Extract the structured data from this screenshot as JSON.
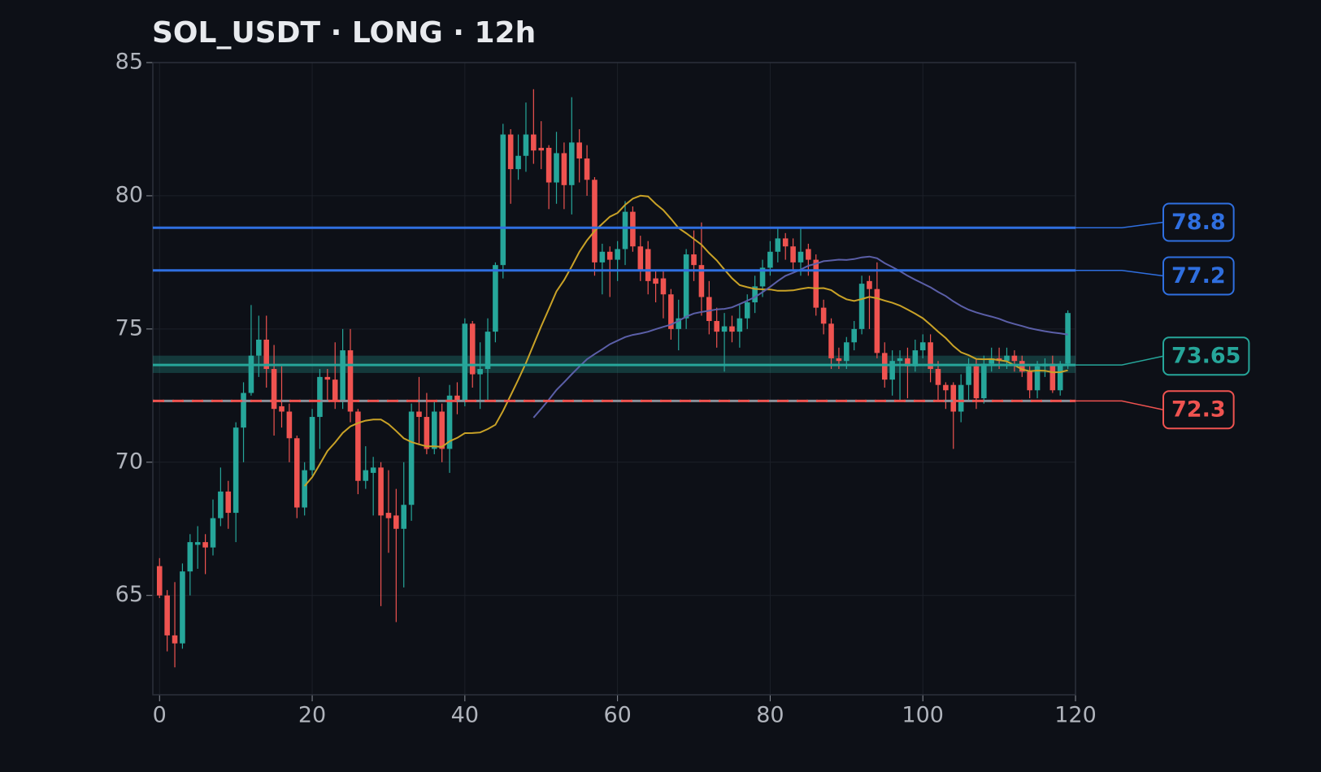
{
  "chart_data": {
    "type": "candlestick",
    "title": "SOL_USDT · LONG · 12h",
    "up_color": "#26a69a",
    "down_color": "#ef5350",
    "grid": true,
    "xlim": [
      -0.88,
      120
    ],
    "xticks": [
      0,
      20,
      40,
      60,
      80,
      100,
      120
    ],
    "ylim": [
      61.27,
      85
    ],
    "yticks": [
      65,
      70,
      75,
      80,
      85
    ],
    "x": [
      0,
      1,
      2,
      3,
      4,
      5,
      6,
      7,
      8,
      9,
      10,
      11,
      12,
      13,
      14,
      15,
      16,
      17,
      18,
      19,
      20,
      21,
      22,
      23,
      24,
      25,
      26,
      27,
      28,
      29,
      30,
      31,
      32,
      33,
      34,
      35,
      36,
      37,
      38,
      39,
      40,
      41,
      42,
      43,
      44,
      45,
      46,
      47,
      48,
      49,
      50,
      51,
      52,
      53,
      54,
      55,
      56,
      57,
      58,
      59,
      60,
      61,
      62,
      63,
      64,
      65,
      66,
      67,
      68,
      69,
      70,
      71,
      72,
      73,
      74,
      75,
      76,
      77,
      78,
      79,
      80,
      81,
      82,
      83,
      84,
      85,
      86,
      87,
      88,
      89,
      90,
      91,
      92,
      93,
      94,
      95,
      96,
      97,
      98,
      99,
      100,
      101,
      102,
      103,
      104,
      105,
      106,
      107,
      108,
      109,
      110,
      111,
      112,
      113,
      114,
      115,
      116,
      117,
      118,
      119
    ],
    "ohlc": [
      [
        66.1,
        66.4,
        64.9,
        65.0
      ],
      [
        65.0,
        65.2,
        62.9,
        63.5
      ],
      [
        63.5,
        65.5,
        62.3,
        63.2
      ],
      [
        63.2,
        66.2,
        63.0,
        65.9
      ],
      [
        65.9,
        67.3,
        65.0,
        67.0
      ],
      [
        66.9,
        67.6,
        66.0,
        67.0
      ],
      [
        67.0,
        67.3,
        65.8,
        66.8
      ],
      [
        66.8,
        68.6,
        66.5,
        67.9
      ],
      [
        67.9,
        69.8,
        67.6,
        68.9
      ],
      [
        68.9,
        69.3,
        67.5,
        68.1
      ],
      [
        68.1,
        71.5,
        67.0,
        71.3
      ],
      [
        71.3,
        73.0,
        70.0,
        72.6
      ],
      [
        72.6,
        75.9,
        72.5,
        74.0
      ],
      [
        74.0,
        75.5,
        73.2,
        74.6
      ],
      [
        74.6,
        75.5,
        72.8,
        73.5
      ],
      [
        73.5,
        74.4,
        71.0,
        72.0
      ],
      [
        72.1,
        73.6,
        71.3,
        71.9
      ],
      [
        71.9,
        72.2,
        70.0,
        70.9
      ],
      [
        70.9,
        71.0,
        67.9,
        68.3
      ],
      [
        68.3,
        70.0,
        68.0,
        69.7
      ],
      [
        69.7,
        72.0,
        69.5,
        71.7
      ],
      [
        71.7,
        73.5,
        70.5,
        73.2
      ],
      [
        73.2,
        73.5,
        72.3,
        73.1
      ],
      [
        73.1,
        74.5,
        72.0,
        72.3
      ],
      [
        72.3,
        75.0,
        72.0,
        74.2
      ],
      [
        74.2,
        75.0,
        71.5,
        71.9
      ],
      [
        71.9,
        72.0,
        68.8,
        69.3
      ],
      [
        69.3,
        70.6,
        69.0,
        69.7
      ],
      [
        69.6,
        70.2,
        68.0,
        69.8
      ],
      [
        69.8,
        70.0,
        64.6,
        68.0
      ],
      [
        68.1,
        69.7,
        66.6,
        67.9
      ],
      [
        68.0,
        69.0,
        64.0,
        67.5
      ],
      [
        67.5,
        70.0,
        65.3,
        68.4
      ],
      [
        68.4,
        72.2,
        67.8,
        71.9
      ],
      [
        71.9,
        73.2,
        70.7,
        71.7
      ],
      [
        71.7,
        72.6,
        70.3,
        70.5
      ],
      [
        70.5,
        72.3,
        70.3,
        71.9
      ],
      [
        71.9,
        72.2,
        70.0,
        70.5
      ],
      [
        70.5,
        72.9,
        69.6,
        72.5
      ],
      [
        72.5,
        73.0,
        71.8,
        72.3
      ],
      [
        72.3,
        75.4,
        72.1,
        75.2
      ],
      [
        75.2,
        75.3,
        72.8,
        73.3
      ],
      [
        73.3,
        74.5,
        72.0,
        73.5
      ],
      [
        73.5,
        75.4,
        72.3,
        74.9
      ],
      [
        74.9,
        77.5,
        74.5,
        77.4
      ],
      [
        77.4,
        82.7,
        76.9,
        82.3
      ],
      [
        82.3,
        82.5,
        79.7,
        81.0
      ],
      [
        81.0,
        82.3,
        80.6,
        81.5
      ],
      [
        81.5,
        83.5,
        80.9,
        82.3
      ],
      [
        82.3,
        84.0,
        81.2,
        81.7
      ],
      [
        81.8,
        82.8,
        81.0,
        81.7
      ],
      [
        81.8,
        81.9,
        79.5,
        80.5
      ],
      [
        80.5,
        82.4,
        79.7,
        81.6
      ],
      [
        81.6,
        82.0,
        79.5,
        80.4
      ],
      [
        80.4,
        83.7,
        79.3,
        82.0
      ],
      [
        82.0,
        82.5,
        80.5,
        81.4
      ],
      [
        81.4,
        81.9,
        80.0,
        80.6
      ],
      [
        80.6,
        80.7,
        77.0,
        77.5
      ],
      [
        77.5,
        78.2,
        76.3,
        77.9
      ],
      [
        77.9,
        78.1,
        76.2,
        77.6
      ],
      [
        77.6,
        78.3,
        76.8,
        78.0
      ],
      [
        78.0,
        79.8,
        77.4,
        79.4
      ],
      [
        79.4,
        79.6,
        77.9,
        78.1
      ],
      [
        78.1,
        78.5,
        76.8,
        77.2
      ],
      [
        78.0,
        78.3,
        76.3,
        76.8
      ],
      [
        76.9,
        77.2,
        76.0,
        76.7
      ],
      [
        76.9,
        77.2,
        75.4,
        76.3
      ],
      [
        76.3,
        76.5,
        74.6,
        75.0
      ],
      [
        75.0,
        76.1,
        74.2,
        75.4
      ],
      [
        75.4,
        78.0,
        75.0,
        77.8
      ],
      [
        77.8,
        78.7,
        76.8,
        77.4
      ],
      [
        77.4,
        79.0,
        75.5,
        76.2
      ],
      [
        76.2,
        76.8,
        74.8,
        75.3
      ],
      [
        75.3,
        75.8,
        74.3,
        74.9
      ],
      [
        74.9,
        75.6,
        73.4,
        75.1
      ],
      [
        75.1,
        75.5,
        74.5,
        74.9
      ],
      [
        74.9,
        75.9,
        74.3,
        75.4
      ],
      [
        75.4,
        76.3,
        75.0,
        76.0
      ],
      [
        76.0,
        77.0,
        75.6,
        76.6
      ],
      [
        76.6,
        77.6,
        76.2,
        77.3
      ],
      [
        77.3,
        78.3,
        77.0,
        77.9
      ],
      [
        77.9,
        78.8,
        77.5,
        78.4
      ],
      [
        78.4,
        78.6,
        77.6,
        78.1
      ],
      [
        78.1,
        78.4,
        77.2,
        77.5
      ],
      [
        77.5,
        78.8,
        77.0,
        77.9
      ],
      [
        78.0,
        78.2,
        77.0,
        77.6
      ],
      [
        77.6,
        77.8,
        75.5,
        75.8
      ],
      [
        75.8,
        76.1,
        74.8,
        75.2
      ],
      [
        75.2,
        75.4,
        73.5,
        73.9
      ],
      [
        73.9,
        74.3,
        73.5,
        73.8
      ],
      [
        73.8,
        74.7,
        73.5,
        74.5
      ],
      [
        74.5,
        75.3,
        74.2,
        75.0
      ],
      [
        75.0,
        77.0,
        74.8,
        76.7
      ],
      [
        76.8,
        77.0,
        75.0,
        76.5
      ],
      [
        76.5,
        77.5,
        73.9,
        74.1
      ],
      [
        74.1,
        74.5,
        72.8,
        73.1
      ],
      [
        73.1,
        74.2,
        72.5,
        73.8
      ],
      [
        73.8,
        74.2,
        72.3,
        73.9
      ],
      [
        73.9,
        74.3,
        72.4,
        73.6
      ],
      [
        73.6,
        74.6,
        73.4,
        74.2
      ],
      [
        74.2,
        74.8,
        73.9,
        74.5
      ],
      [
        74.5,
        74.8,
        73.0,
        73.5
      ],
      [
        73.5,
        73.8,
        72.3,
        72.9
      ],
      [
        72.9,
        73.0,
        72.0,
        72.7
      ],
      [
        72.9,
        73.0,
        70.5,
        71.9
      ],
      [
        71.9,
        73.3,
        71.5,
        72.9
      ],
      [
        72.9,
        73.9,
        72.3,
        73.6
      ],
      [
        73.6,
        73.9,
        72.0,
        72.4
      ],
      [
        72.4,
        74.0,
        72.2,
        73.7
      ],
      [
        73.7,
        74.3,
        73.4,
        73.9
      ],
      [
        73.9,
        74.3,
        73.5,
        73.8
      ],
      [
        73.8,
        74.3,
        73.5,
        74.0
      ],
      [
        74.0,
        74.2,
        73.4,
        73.8
      ],
      [
        73.8,
        74.0,
        73.2,
        73.4
      ],
      [
        73.4,
        73.6,
        72.4,
        72.7
      ],
      [
        72.7,
        73.8,
        72.4,
        73.6
      ],
      [
        73.6,
        73.9,
        73.2,
        73.7
      ],
      [
        73.7,
        74.0,
        72.6,
        72.7
      ],
      [
        72.7,
        73.8,
        72.5,
        73.7
      ],
      [
        73.7,
        75.7,
        73.5,
        75.6
      ]
    ],
    "moving_averages": [
      {
        "period": 20,
        "color": "#c9a227"
      },
      {
        "period": 50,
        "color": "#5b5fa8"
      }
    ],
    "levels": [
      {
        "value": 78.8,
        "color": "#2f6fe0",
        "style": "solid"
      },
      {
        "value": 77.2,
        "color": "#2f6fe0",
        "style": "solid"
      },
      {
        "value": 73.65,
        "color": "#26a69a",
        "style": "solid",
        "band": [
          73.35,
          74.0
        ]
      },
      {
        "value": 72.3,
        "color": "#ef5350",
        "style": "dashed"
      }
    ]
  }
}
